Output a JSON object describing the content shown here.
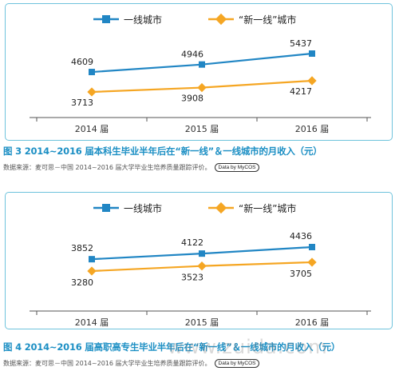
{
  "charts": [
    {
      "caption": "图 3  2014~2016 届本科生毕业半年后在“新一线”＆一线城市的月收入（元）",
      "source": "数据来源：麦可思－中国 2014~2016 届大学毕业生培养质量跟踪评价。",
      "brand": "Data by MyCOS",
      "chart_data": {
        "type": "line",
        "categories": [
          "2014 届",
          "2015 届",
          "2016 届"
        ],
        "series": [
          {
            "name": "一线城市",
            "color": "#2186c4",
            "marker": "square",
            "values": [
              4609,
              4946,
              5437
            ]
          },
          {
            "name": "“新一线”城市",
            "color": "#f5a623",
            "marker": "diamond",
            "values": [
              3713,
              3908,
              4217
            ]
          }
        ],
        "legend": "top-center",
        "grid": false
      }
    },
    {
      "caption": "图 4  2014~2016 届高职高专生毕业半年后在“新一线”＆一线城市的月收入（元）",
      "source": "数据来源：麦可思－中国 2014~2016 届大学毕业生培养质量跟踪评价。",
      "brand": "Data by MyCOS",
      "chart_data": {
        "type": "line",
        "categories": [
          "2014 届",
          "2015 届",
          "2016 届"
        ],
        "series": [
          {
            "name": "一线城市",
            "color": "#2186c4",
            "marker": "square",
            "values": [
              3852,
              4122,
              4436
            ]
          },
          {
            "name": "“新一线”城市",
            "color": "#f5a623",
            "marker": "diamond",
            "values": [
              3280,
              3523,
              3705
            ]
          }
        ],
        "legend": "top-center",
        "grid": false
      }
    }
  ],
  "watermark": "www.zuida.com"
}
